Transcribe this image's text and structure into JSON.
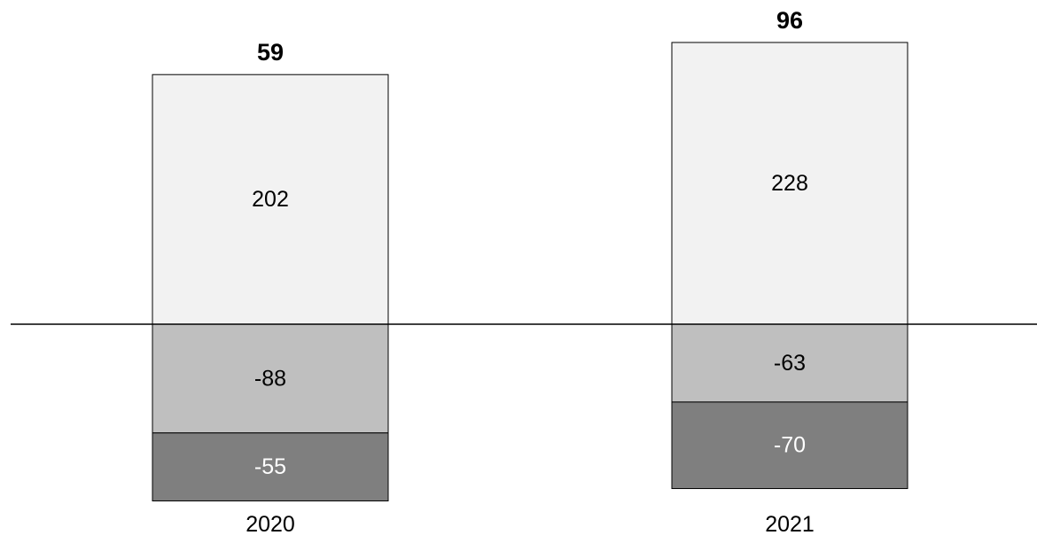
{
  "chart_data": {
    "type": "bar",
    "stacked": true,
    "categories": [
      "2020",
      "2021"
    ],
    "series": [
      {
        "values": [
          202,
          228
        ],
        "color": "#f2f2f2",
        "label_color": "#000000"
      },
      {
        "values": [
          -88,
          -63
        ],
        "color": "#bfbfbf",
        "label_color": "#000000"
      },
      {
        "values": [
          -55,
          -70
        ],
        "color": "#7f7f7f",
        "label_color": "#ffffff"
      }
    ],
    "totals": [
      59,
      96
    ],
    "baseline": 0,
    "grid": false,
    "legend": "none",
    "title": "",
    "xlabel": "",
    "ylabel": ""
  }
}
